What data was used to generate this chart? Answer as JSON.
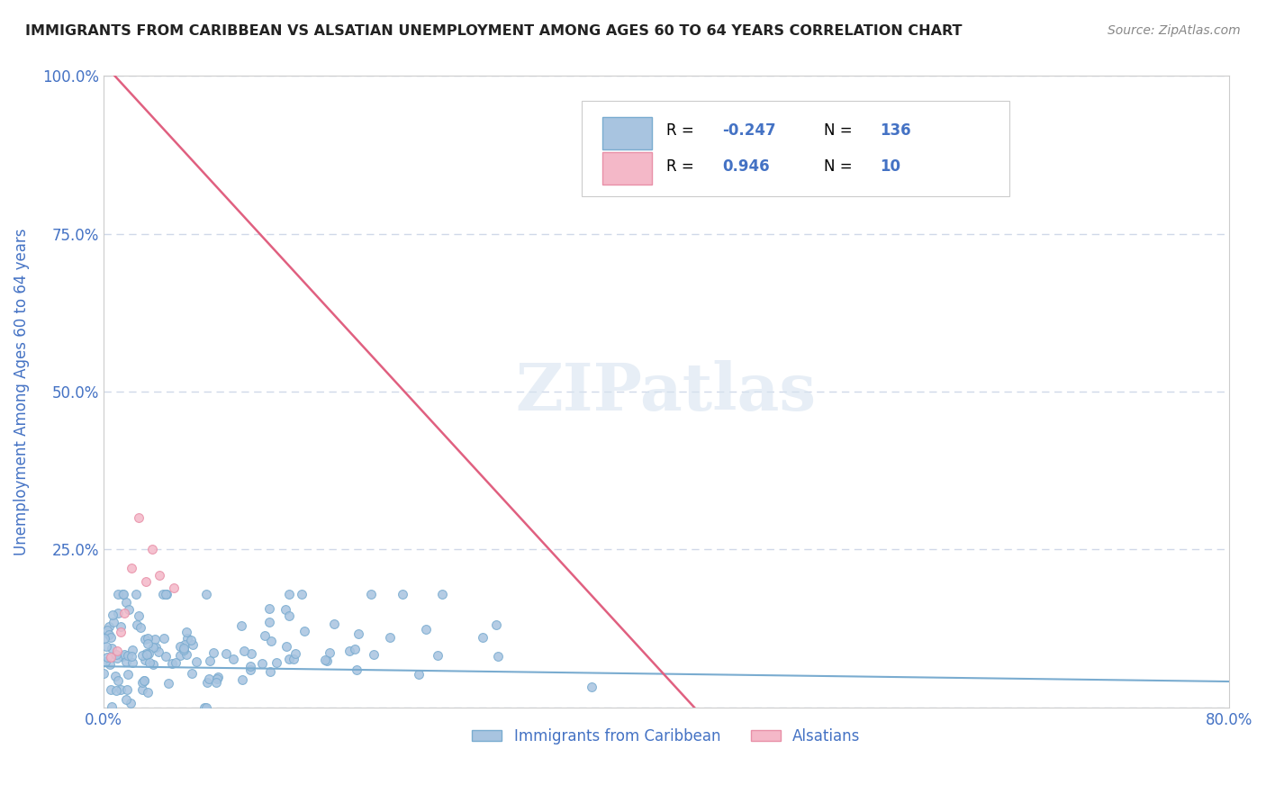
{
  "title": "IMMIGRANTS FROM CARIBBEAN VS ALSATIAN UNEMPLOYMENT AMONG AGES 60 TO 64 YEARS CORRELATION CHART",
  "source": "Source: ZipAtlas.com",
  "xlabel": "",
  "ylabel": "Unemployment Among Ages 60 to 64 years",
  "xlim": [
    0.0,
    0.8
  ],
  "ylim": [
    0.0,
    1.0
  ],
  "xticks": [
    0.0,
    0.1,
    0.2,
    0.3,
    0.4,
    0.5,
    0.6,
    0.7,
    0.8
  ],
  "xticklabels": [
    "0.0%",
    "",
    "",
    "",
    "",
    "",
    "",
    "",
    "80.0%"
  ],
  "yticks": [
    0.0,
    0.25,
    0.5,
    0.75,
    1.0
  ],
  "yticklabels": [
    "",
    "25.0%",
    "50.0%",
    "75.0%",
    "100.0%"
  ],
  "series1_name": "Immigrants from Caribbean",
  "series1_color": "#a8c4e0",
  "series1_edge": "#7aacd0",
  "series1_R": -0.247,
  "series1_N": 136,
  "series2_name": "Alsatians",
  "series2_color": "#f4b8c8",
  "series2_edge": "#e890a8",
  "series2_R": 0.946,
  "series2_N": 10,
  "watermark": "ZIPatlas",
  "background_color": "#ffffff",
  "grid_color": "#d0d8e8",
  "title_color": "#222222",
  "axis_color": "#4472c4",
  "legend_R_color": "#4472c4",
  "tick_color": "#4472c4"
}
